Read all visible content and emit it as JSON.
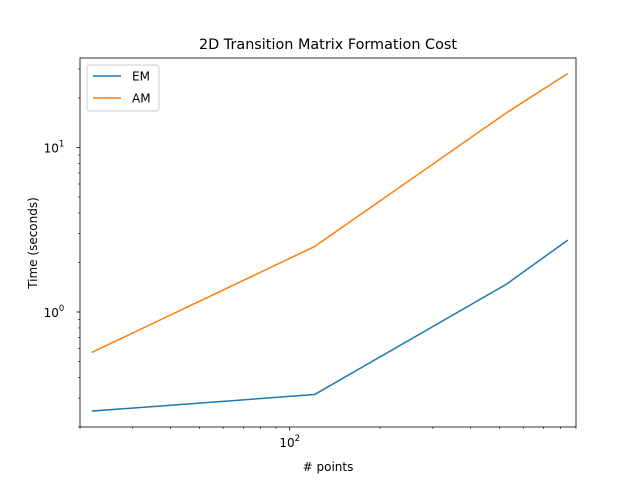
{
  "chart_data": {
    "type": "line",
    "title": "2D Transition Matrix Formation Cost",
    "xlabel": "# points",
    "ylabel": "Time (seconds)",
    "xscale": "log",
    "yscale": "log",
    "xlim": [
      20,
      900
    ],
    "ylim": [
      0.2,
      35
    ],
    "x": [
      22,
      121,
      529,
      841
    ],
    "series": [
      {
        "name": "EM",
        "color": "#1f77b4",
        "values": [
          0.25,
          0.315,
          1.48,
          2.72
        ]
      },
      {
        "name": "AM",
        "color": "#ff7f0e",
        "values": [
          0.57,
          2.5,
          16.3,
          28.0
        ]
      }
    ],
    "x_tick_labels": [
      {
        "value": 100,
        "base": "10",
        "exp": "2"
      }
    ],
    "y_tick_labels": [
      {
        "value": 1,
        "base": "10",
        "exp": "0"
      },
      {
        "value": 10,
        "base": "10",
        "exp": "1"
      }
    ],
    "grid": false,
    "legend_position": "upper-left"
  }
}
